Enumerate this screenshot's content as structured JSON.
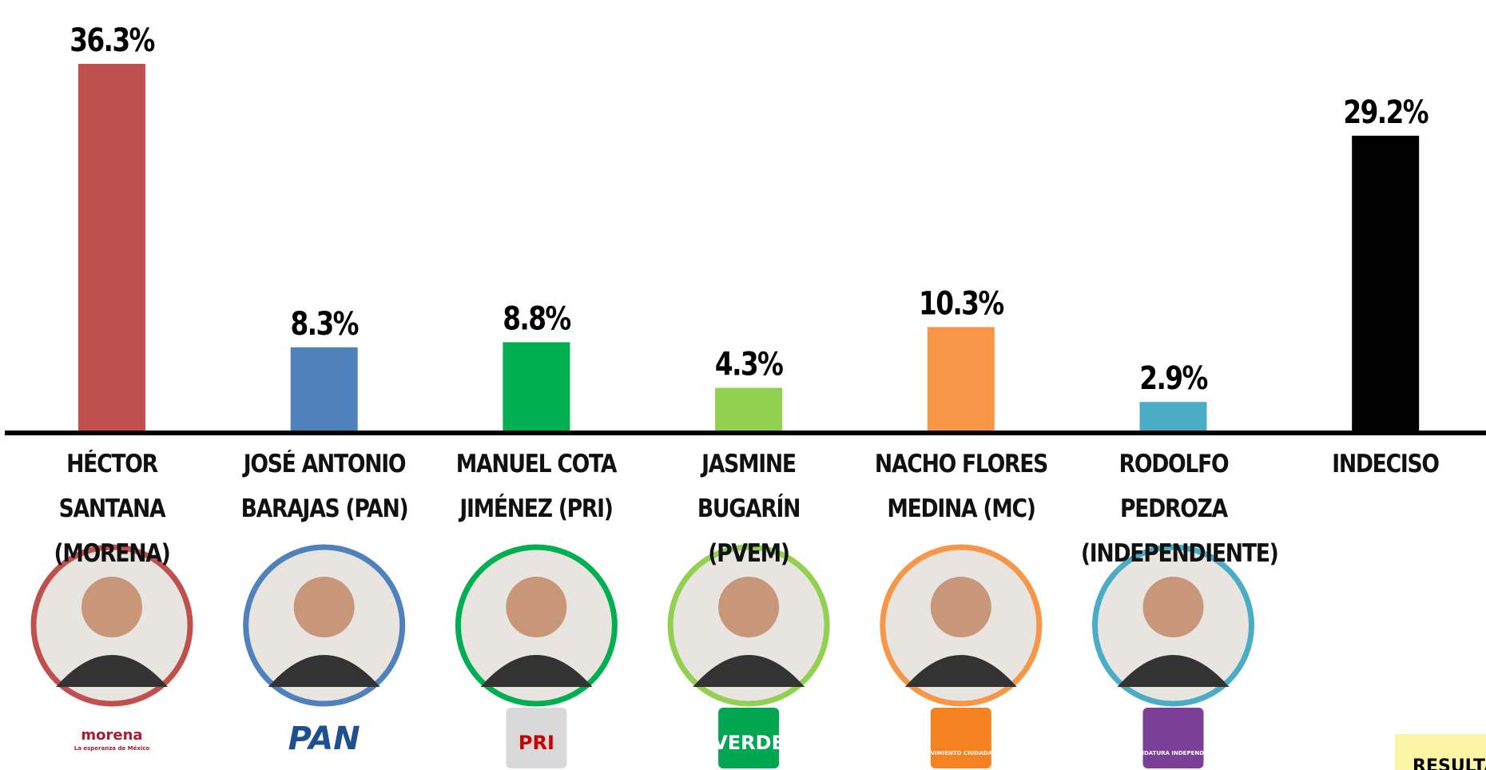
{
  "chart_data": {
    "type": "bar",
    "categories": [
      "HÉCTOR SANTANA (MORENA)",
      "JOSÉ ANTONIO BARAJAS (PAN)",
      "MANUEL COTA JIMÉNEZ (PRI)",
      "JASMINE BUGARÍN (PVEM)",
      "NACHO FLORES MEDINA (MC)",
      "RODOLFO PEDROZA (INDEPENDIENTE)",
      "INDECISO"
    ],
    "values": [
      36.3,
      8.3,
      8.8,
      4.3,
      10.3,
      2.9,
      29.2
    ],
    "value_labels": [
      "36.3%",
      "8.3%",
      "8.8%",
      "4.3%",
      "10.3%",
      "2.9%",
      "29.2%"
    ],
    "colors": [
      "#c0504d",
      "#4f81bd",
      "#00b050",
      "#92d050",
      "#f79646",
      "#4bacc6",
      "#000000"
    ],
    "ylim": [
      0,
      40
    ],
    "logos": [
      [
        "morena",
        "La esperanza de México"
      ],
      [
        "PAN"
      ],
      [
        "PRI"
      ],
      [
        "VERDE"
      ],
      [
        "MOVIMIENTO CIUDADANO"
      ],
      [
        "CANDIDATURA INDEPENDIENTE"
      ]
    ],
    "note": "RESULTAD"
  }
}
